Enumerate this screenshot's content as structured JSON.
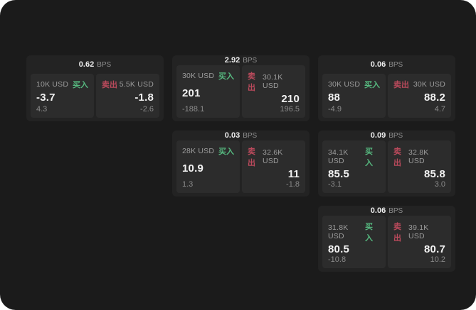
{
  "page": {
    "bg_color": "#1b1b1b",
    "card_bg_color": "#232323",
    "panel_bg_color": "#2c2c2c"
  },
  "labels": {
    "buy": "买入",
    "sell": "卖出",
    "bps_unit": "BPS"
  },
  "colors": {
    "buy_green": "#56b87f",
    "sell_red": "#bb4a5c"
  },
  "cards": [
    {
      "grid": {
        "col": 1,
        "row": 1
      },
      "bps": "0.62",
      "buy": {
        "size": "10K USD",
        "price": "-3.7",
        "delta": "4.3"
      },
      "sell": {
        "size": "5.5K USD",
        "price": "-1.8",
        "delta": "-2.6"
      }
    },
    {
      "grid": {
        "col": 2,
        "row": 1
      },
      "bps": "2.92",
      "buy": {
        "size": "30K USD",
        "price": "201",
        "delta": "-188.1"
      },
      "sell": {
        "size": "30.1K USD",
        "price": "210",
        "delta": "196.5"
      }
    },
    {
      "grid": {
        "col": 3,
        "row": 1
      },
      "bps": "0.06",
      "buy": {
        "size": "30K USD",
        "price": "88",
        "delta": "-4.9"
      },
      "sell": {
        "size": "30K USD",
        "price": "88.2",
        "delta": "4.7"
      }
    },
    {
      "grid": {
        "col": 2,
        "row": 2
      },
      "bps": "0.03",
      "buy": {
        "size": "28K USD",
        "price": "10.9",
        "delta": "1.3"
      },
      "sell": {
        "size": "32.6K USD",
        "price": "11",
        "delta": "-1.8"
      }
    },
    {
      "grid": {
        "col": 3,
        "row": 2
      },
      "bps": "0.09",
      "buy": {
        "size": "34.1K USD",
        "price": "85.5",
        "delta": "-3.1"
      },
      "sell": {
        "size": "32.8K USD",
        "price": "85.8",
        "delta": "3.0"
      }
    },
    {
      "grid": {
        "col": 3,
        "row": 3
      },
      "bps": "0.06",
      "buy": {
        "size": "31.8K USD",
        "price": "80.5",
        "delta": "-10.8"
      },
      "sell": {
        "size": "39.1K USD",
        "price": "80.7",
        "delta": "10.2"
      }
    }
  ]
}
